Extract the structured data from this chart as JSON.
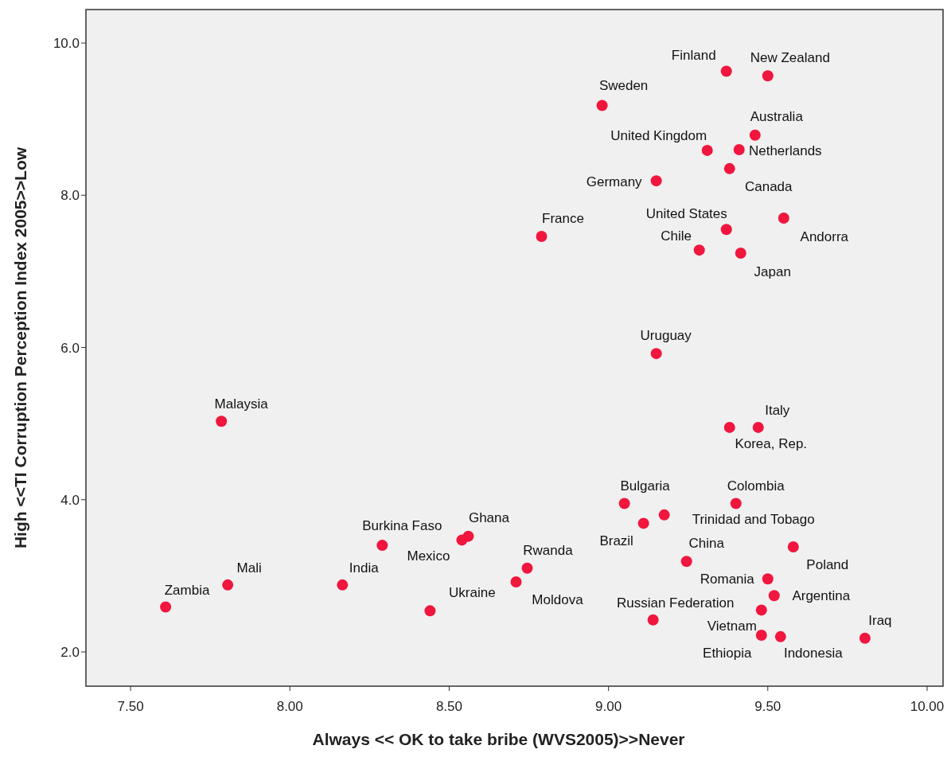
{
  "chart_data": {
    "type": "scatter",
    "xlabel": "Always << OK to take bribe (WVS2005)>>Never",
    "ylabel": "High <<TI Corruption Perception Index 2005>>Low",
    "xlim": [
      7.36,
      10.05
    ],
    "ylim": [
      1.55,
      10.44
    ],
    "xticks": [
      {
        "value": 7.5,
        "label": "7.50"
      },
      {
        "value": 8,
        "label": "8.00"
      },
      {
        "value": 8.5,
        "label": "8.50"
      },
      {
        "value": 9,
        "label": "9.00"
      },
      {
        "value": 9.5,
        "label": "9.50"
      },
      {
        "value": 10,
        "label": "10.00"
      }
    ],
    "yticks": [
      {
        "value": 2,
        "label": "2.0"
      },
      {
        "value": 4,
        "label": "4.0"
      },
      {
        "value": 6,
        "label": "6.0"
      },
      {
        "value": 8,
        "label": "8.0"
      },
      {
        "value": 10,
        "label": "10.0"
      }
    ],
    "grid": false,
    "marker": "circle",
    "series": [
      {
        "color": "#f0163e",
        "x": [
          9.37,
          9.5,
          8.98,
          9.46,
          9.31,
          9.41,
          9.38,
          9.15,
          8.79,
          9.37,
          9.55,
          9.285,
          9.415,
          9.15,
          9.47,
          9.38,
          7.785,
          9.05,
          9.4,
          9.175,
          9.11,
          8.56,
          8.54,
          8.29,
          9.58,
          9.245,
          8.745,
          8.71,
          9.5,
          7.805,
          8.165,
          9.52,
          7.61,
          8.44,
          9.48,
          9.14,
          9.48,
          9.54,
          9.805
        ],
        "values": [
          9.63,
          9.57,
          9.18,
          8.79,
          8.59,
          8.6,
          8.35,
          8.19,
          7.46,
          7.55,
          7.7,
          7.28,
          7.24,
          5.92,
          4.95,
          4.95,
          5.03,
          3.95,
          3.95,
          3.8,
          3.69,
          3.52,
          3.47,
          3.4,
          3.38,
          3.19,
          3.1,
          2.92,
          2.96,
          2.88,
          2.88,
          2.74,
          2.59,
          2.54,
          2.55,
          2.42,
          2.22,
          2.2,
          2.18
        ]
      }
    ],
    "annotations": [
      {
        "text": "Finland",
        "x": 9.37,
        "y": 9.63
      },
      {
        "text": "New Zealand",
        "x": 9.5,
        "y": 9.57
      },
      {
        "text": "Sweden",
        "x": 8.98,
        "y": 9.18
      },
      {
        "text": "Australia",
        "x": 9.46,
        "y": 8.79
      },
      {
        "text": "United Kingdom",
        "x": 9.31,
        "y": 8.59
      },
      {
        "text": "Netherlands",
        "x": 9.41,
        "y": 8.6
      },
      {
        "text": "Canada",
        "x": 9.38,
        "y": 8.35
      },
      {
        "text": "Germany",
        "x": 9.15,
        "y": 8.19
      },
      {
        "text": "France",
        "x": 8.79,
        "y": 7.46
      },
      {
        "text": "United States",
        "x": 9.37,
        "y": 7.55
      },
      {
        "text": "Andorra",
        "x": 9.55,
        "y": 7.7
      },
      {
        "text": "Chile",
        "x": 9.285,
        "y": 7.28
      },
      {
        "text": "Japan",
        "x": 9.415,
        "y": 7.24
      },
      {
        "text": "Uruguay",
        "x": 9.15,
        "y": 5.92
      },
      {
        "text": "Italy",
        "x": 9.47,
        "y": 4.95
      },
      {
        "text": "Korea, Rep.",
        "x": 9.38,
        "y": 4.95
      },
      {
        "text": "Malaysia",
        "x": 7.785,
        "y": 5.03
      },
      {
        "text": "Bulgaria",
        "x": 9.05,
        "y": 3.95
      },
      {
        "text": "Colombia",
        "x": 9.4,
        "y": 3.95
      },
      {
        "text": "Trinidad and Tobago",
        "x": 9.175,
        "y": 3.8
      },
      {
        "text": "Brazil",
        "x": 9.11,
        "y": 3.69
      },
      {
        "text": "Ghana",
        "x": 8.56,
        "y": 3.52
      },
      {
        "text": "Mexico",
        "x": 8.54,
        "y": 3.47
      },
      {
        "text": "Burkina Faso",
        "x": 8.29,
        "y": 3.4
      },
      {
        "text": "Poland",
        "x": 9.58,
        "y": 3.38
      },
      {
        "text": "China",
        "x": 9.245,
        "y": 3.19
      },
      {
        "text": "Rwanda",
        "x": 8.745,
        "y": 3.1
      },
      {
        "text": "Moldova",
        "x": 8.71,
        "y": 2.92
      },
      {
        "text": "Romania",
        "x": 9.5,
        "y": 2.96
      },
      {
        "text": "Mali",
        "x": 7.805,
        "y": 2.88
      },
      {
        "text": "India",
        "x": 8.165,
        "y": 2.88
      },
      {
        "text": "Argentina",
        "x": 9.52,
        "y": 2.74
      },
      {
        "text": "Zambia",
        "x": 7.61,
        "y": 2.59
      },
      {
        "text": "Ukraine",
        "x": 8.44,
        "y": 2.54
      },
      {
        "text": "Vietnam",
        "x": 9.48,
        "y": 2.55
      },
      {
        "text": "Russian Federation",
        "x": 9.14,
        "y": 2.42
      },
      {
        "text": "Ethiopia",
        "x": 9.48,
        "y": 2.22
      },
      {
        "text": "Indonesia",
        "x": 9.54,
        "y": 2.2
      },
      {
        "text": "Iraq",
        "x": 9.805,
        "y": 2.18
      }
    ]
  }
}
